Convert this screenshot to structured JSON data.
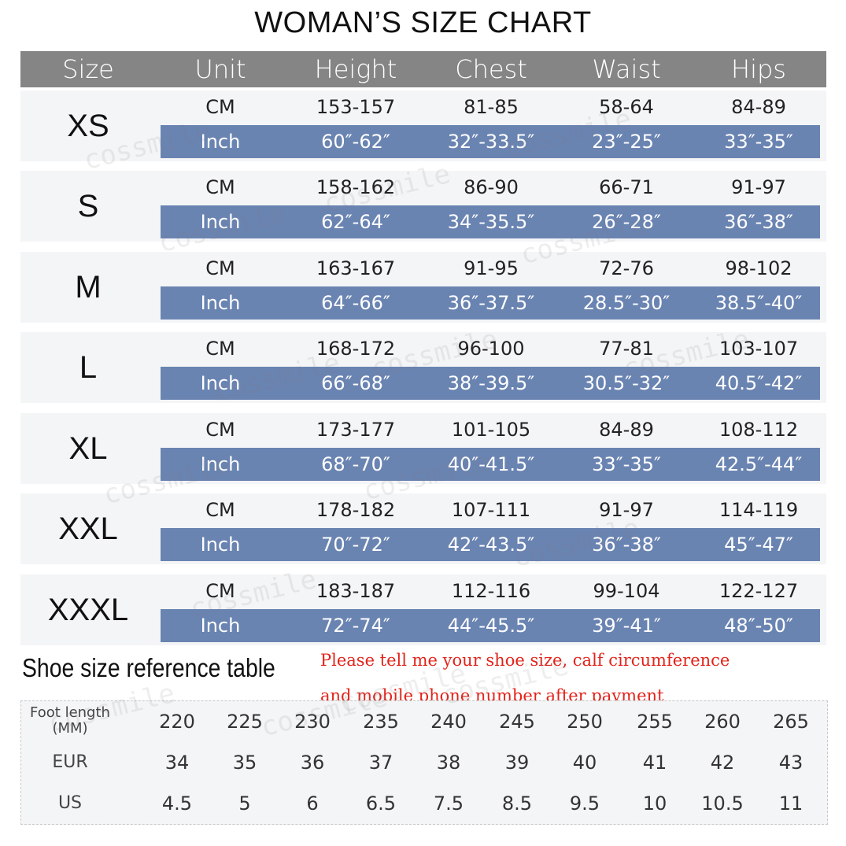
{
  "title": "WOMAN’S SIZE CHART",
  "headers": [
    "Size",
    "Unit",
    "Height",
    "Chest",
    "Waist",
    "Hips"
  ],
  "sizes": [
    {
      "size": "XS",
      "cm": {
        "unit": "CM",
        "height": "153-157",
        "chest": "81-85",
        "waist": "58-64",
        "hips": "84-89"
      },
      "inch": {
        "unit": "Inch",
        "height": "60″-62″",
        "chest": "32″-33.5″",
        "waist": "23″-25″",
        "hips": "33″-35″"
      }
    },
    {
      "size": "S",
      "cm": {
        "unit": "CM",
        "height": "158-162",
        "chest": "86-90",
        "waist": "66-71",
        "hips": "91-97"
      },
      "inch": {
        "unit": "Inch",
        "height": "62″-64″",
        "chest": "34″-35.5″",
        "waist": "26″-28″",
        "hips": "36″-38″"
      }
    },
    {
      "size": "M",
      "cm": {
        "unit": "CM",
        "height": "163-167",
        "chest": "91-95",
        "waist": "72-76",
        "hips": "98-102"
      },
      "inch": {
        "unit": "Inch",
        "height": "64″-66″",
        "chest": "36″-37.5″",
        "waist": "28.5″-30″",
        "hips": "38.5″-40″"
      }
    },
    {
      "size": "L",
      "cm": {
        "unit": "CM",
        "height": "168-172",
        "chest": "96-100",
        "waist": "77-81",
        "hips": "103-107"
      },
      "inch": {
        "unit": "Inch",
        "height": "66″-68″",
        "chest": "38″-39.5″",
        "waist": "30.5″-32″",
        "hips": "40.5″-42″"
      }
    },
    {
      "size": "XL",
      "cm": {
        "unit": "CM",
        "height": "173-177",
        "chest": "101-105",
        "waist": "84-89",
        "hips": "108-112"
      },
      "inch": {
        "unit": "Inch",
        "height": "68″-70″",
        "chest": "40″-41.5″",
        "waist": "33″-35″",
        "hips": "42.5″-44″"
      }
    },
    {
      "size": "XXL",
      "cm": {
        "unit": "CM",
        "height": "178-182",
        "chest": "107-111",
        "waist": "91-97",
        "hips": "114-119"
      },
      "inch": {
        "unit": "Inch",
        "height": "70″-72″",
        "chest": "42″-43.5″",
        "waist": "36″-38″",
        "hips": "45″-47″"
      }
    },
    {
      "size": "XXXL",
      "cm": {
        "unit": "CM",
        "height": "183-187",
        "chest": "112-116",
        "waist": "99-104",
        "hips": "122-127"
      },
      "inch": {
        "unit": "Inch",
        "height": "72″-74″",
        "chest": "44″-45.5″",
        "waist": "39″-41″",
        "hips": "48″-50″"
      }
    }
  ],
  "shoe": {
    "title": "Shoe size reference table",
    "note_line1": "Please tell me your shoe size, calf circumference",
    "note_line2": "and mobile phone number after payment",
    "foot_label_line1": "Foot length",
    "foot_label_line2": "(MM)",
    "eur_label": "EUR",
    "us_label": "US",
    "foot": [
      "220",
      "225",
      "230",
      "235",
      "240",
      "245",
      "250",
      "255",
      "260",
      "265"
    ],
    "eur": [
      "34",
      "35",
      "36",
      "37",
      "38",
      "39",
      "40",
      "41",
      "42",
      "43"
    ],
    "us": [
      "4.5",
      "5",
      "6",
      "6.5",
      "7.5",
      "8.5",
      "9.5",
      "10",
      "10.5",
      "11"
    ]
  },
  "watermark": "cossmile",
  "colors": {
    "header": "#858585",
    "inch_row": "#6a84b2",
    "block_bg": "#f4f5f7",
    "note": "#e2231a"
  }
}
